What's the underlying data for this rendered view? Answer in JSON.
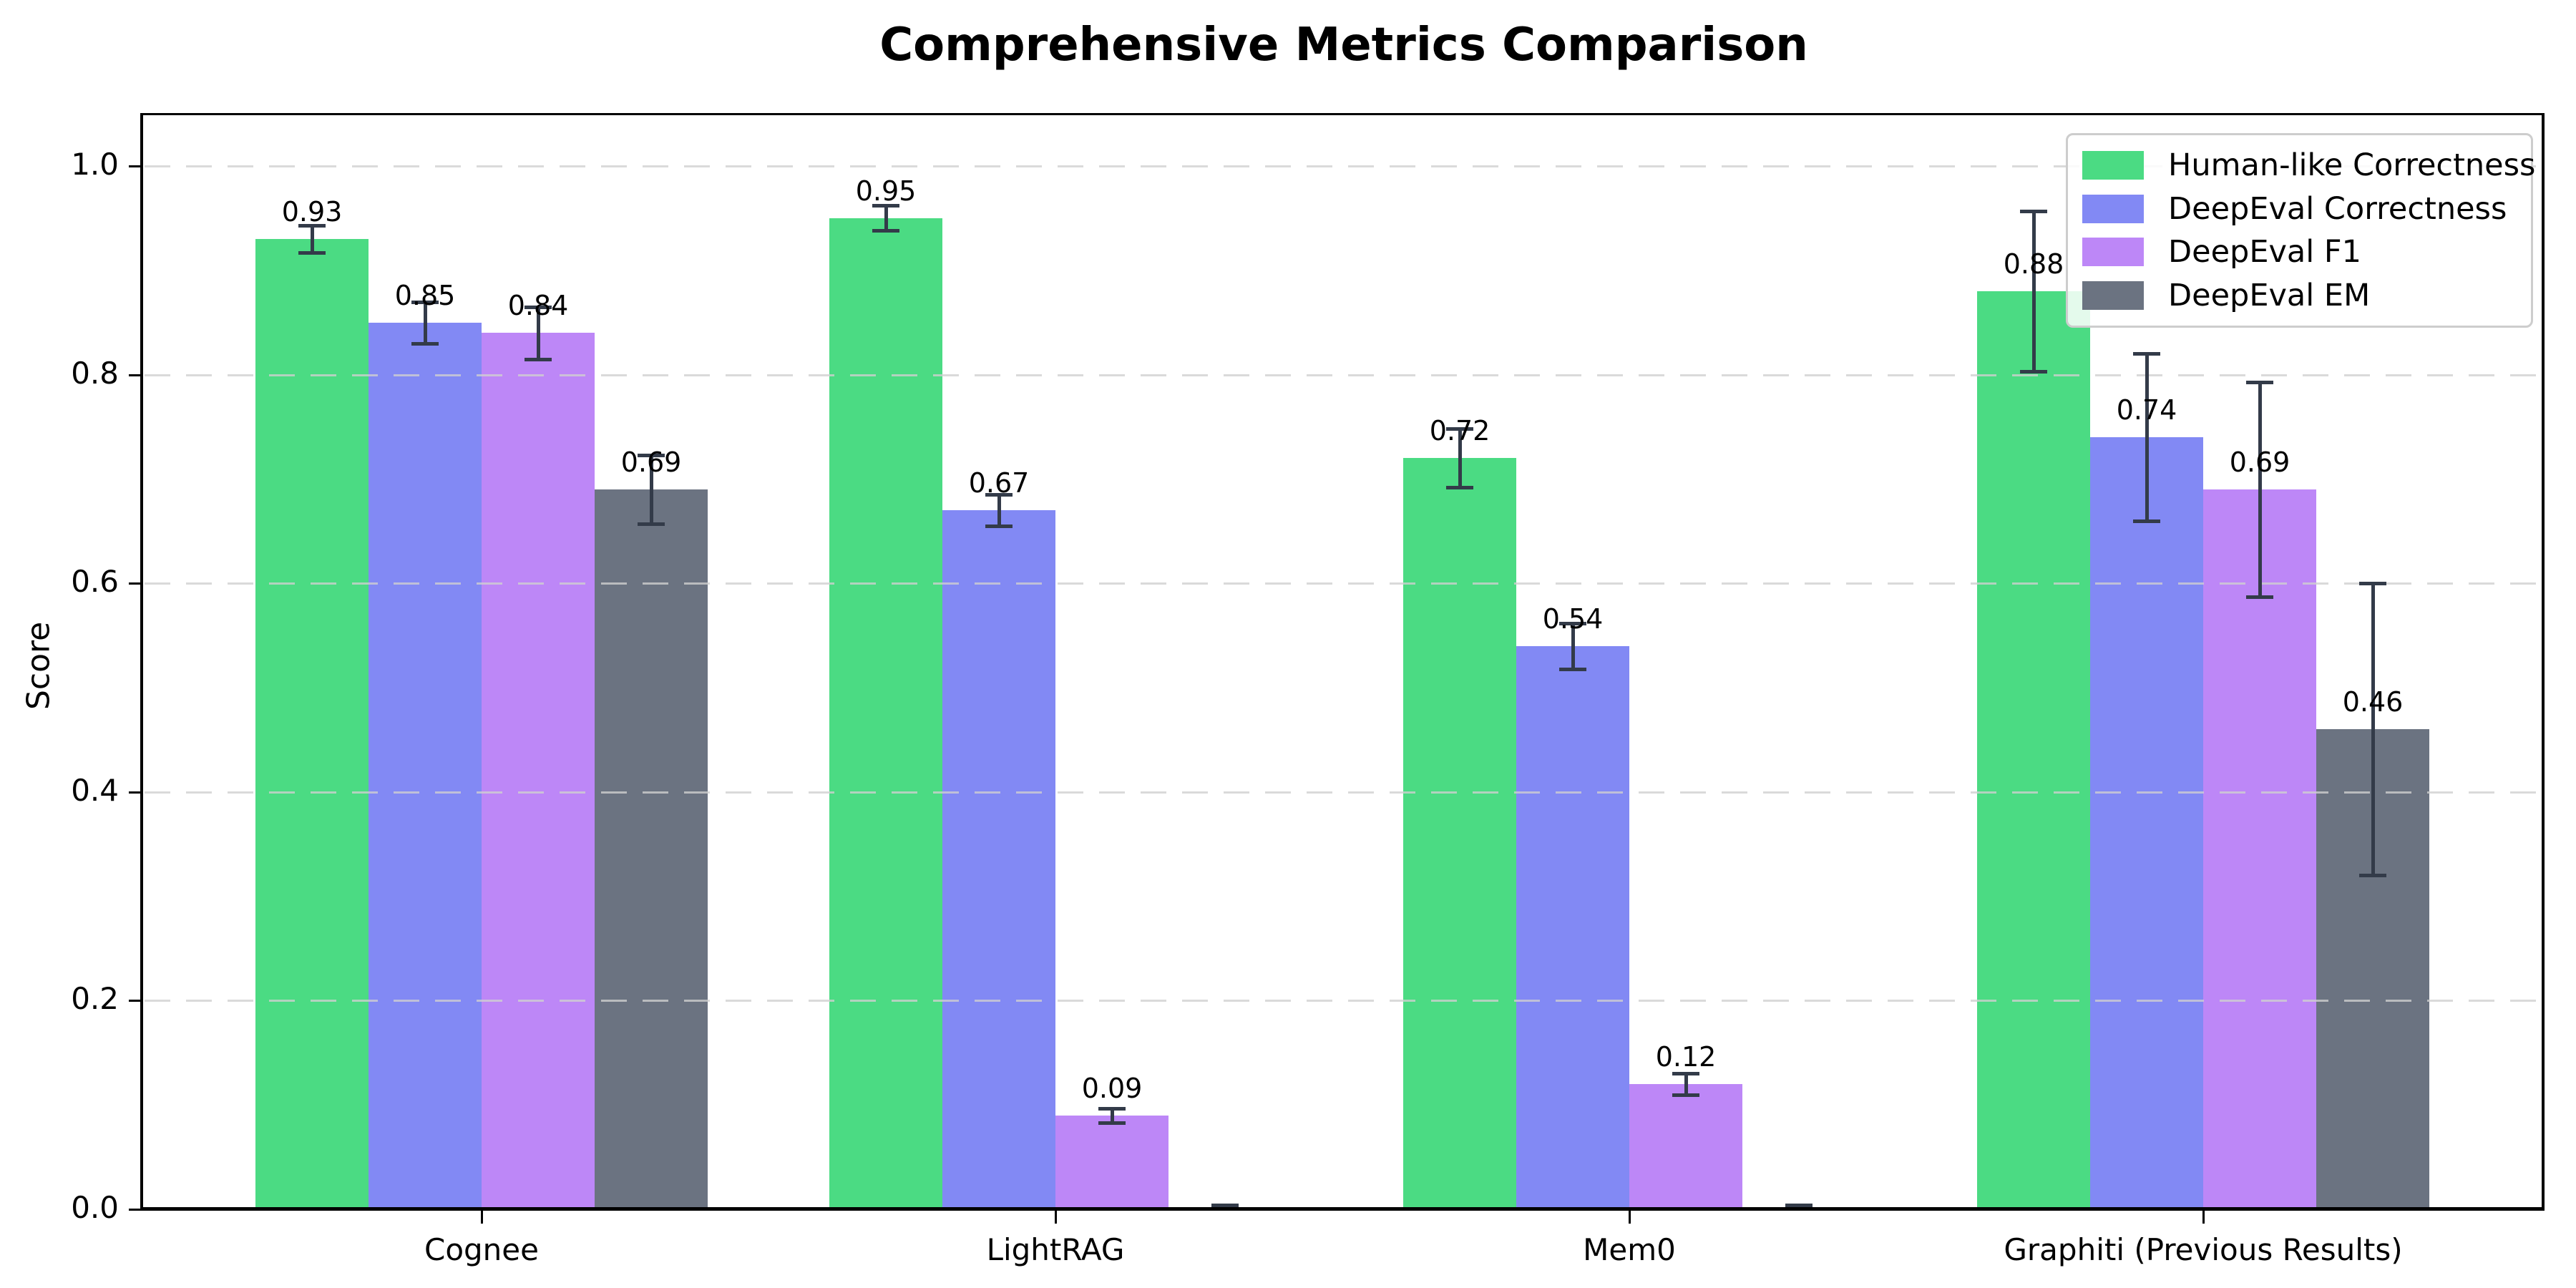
{
  "chart_data": {
    "type": "bar",
    "title": "Comprehensive Metrics Comparison",
    "xlabel": "",
    "ylabel": "Score",
    "categories": [
      "Cognee",
      "LightRAG",
      "Mem0",
      "Graphiti (Previous Results)"
    ],
    "series": [
      {
        "name": "Human-like Correctness",
        "color": "#4bdb83",
        "values": [
          0.93,
          0.95,
          0.72,
          0.88
        ],
        "errors": [
          0.013,
          0.012,
          0.028,
          0.077
        ],
        "labels": [
          "0.93",
          "0.95",
          "0.72",
          "0.88"
        ]
      },
      {
        "name": "DeepEval Correctness",
        "color": "#8289f4",
        "values": [
          0.85,
          0.67,
          0.54,
          0.74
        ],
        "errors": [
          0.02,
          0.015,
          0.022,
          0.08
        ],
        "labels": [
          "0.85",
          "0.67",
          "0.54",
          "0.74"
        ]
      },
      {
        "name": "DeepEval F1",
        "color": "#bd87f7",
        "values": [
          0.84,
          0.09,
          0.12,
          0.69
        ],
        "errors": [
          0.025,
          0.007,
          0.01,
          0.103
        ],
        "labels": [
          "0.84",
          "0.09",
          "0.12",
          "0.69"
        ]
      },
      {
        "name": "DeepEval EM",
        "color": "#6b7381",
        "values": [
          0.69,
          0.0,
          0.0,
          0.46
        ],
        "errors": [
          0.033,
          0.004,
          0.004,
          0.14
        ],
        "labels": [
          "0.69",
          "",
          "",
          "0.46"
        ]
      }
    ],
    "yticks": [
      "0.0",
      "0.2",
      "0.4",
      "0.6",
      "0.8",
      "1.0"
    ],
    "ytick_values": [
      0.0,
      0.2,
      0.4,
      0.6,
      0.8,
      1.0
    ],
    "ylim": [
      0,
      1.05
    ],
    "grid": "horizontal dashed",
    "legend_position": "upper right",
    "error_bar_color": "#333b49",
    "background_color": "#ffffff"
  }
}
